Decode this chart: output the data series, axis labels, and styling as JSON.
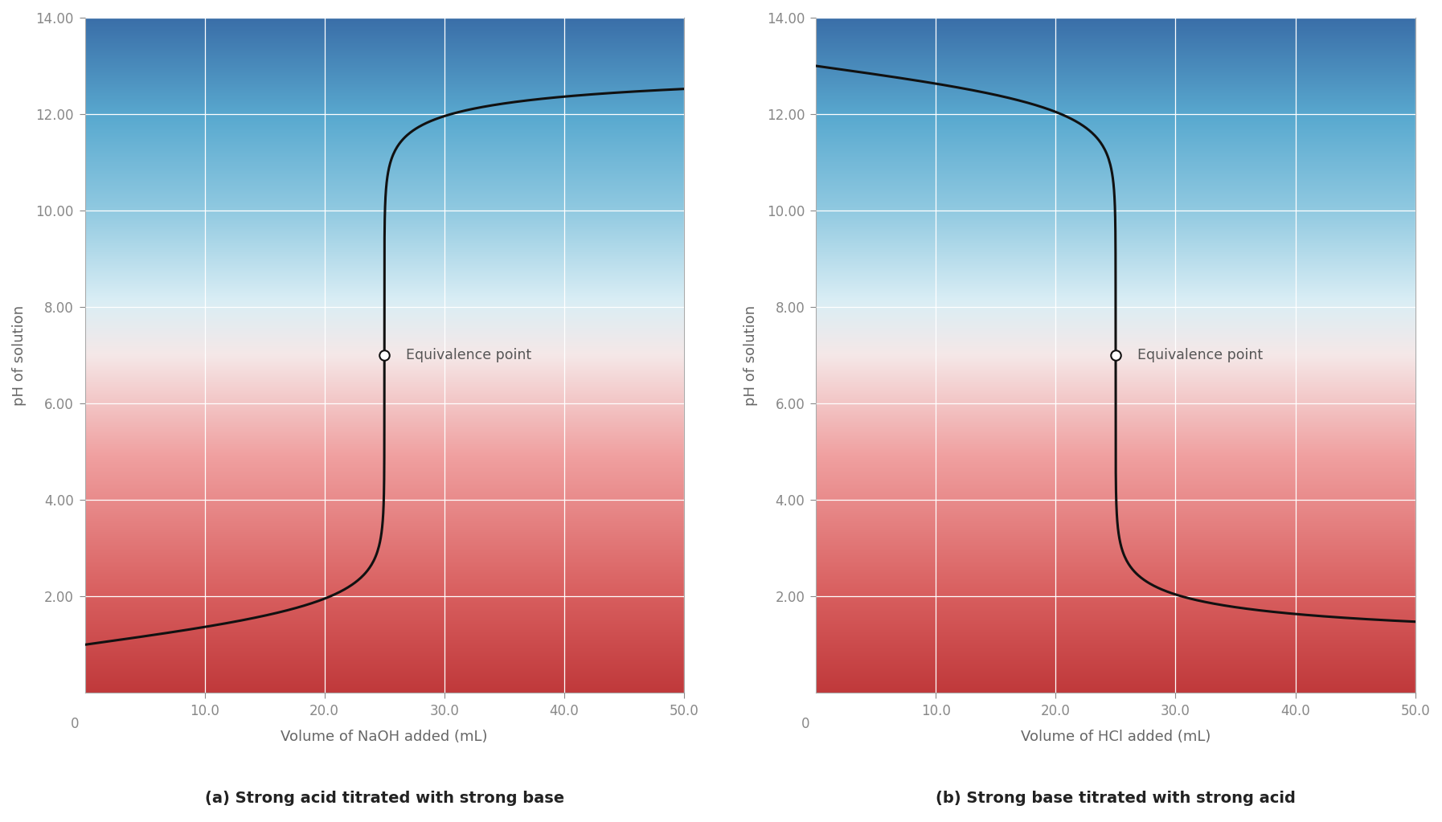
{
  "fig_width": 17.94,
  "fig_height": 10.23,
  "xlim": [
    0,
    50
  ],
  "ylim": [
    0,
    14
  ],
  "xticks": [
    10.0,
    20.0,
    30.0,
    40.0,
    50.0
  ],
  "yticks": [
    2.0,
    4.0,
    6.0,
    8.0,
    10.0,
    12.0,
    14.0
  ],
  "xlabel_a": "Volume of NaOH added (mL)",
  "xlabel_b": "Volume of HCl added (mL)",
  "ylabel": "pH of solution",
  "title_a": "(a) Strong acid titrated with strong base",
  "title_b": "(b) Strong base titrated with strong acid",
  "equiv_label": "Equivalence point",
  "equiv_x_a": 25.0,
  "equiv_y_a": 7.0,
  "equiv_x_b": 25.0,
  "equiv_y_b": 7.0,
  "line_color": "#111111",
  "line_width": 2.2,
  "grid_color": "#ffffff",
  "tick_color": "#888888",
  "label_color": "#666666",
  "title_color": "#222222",
  "grad_colors": [
    [
      0.0,
      "#c0393b"
    ],
    [
      0.15,
      "#d96060"
    ],
    [
      0.35,
      "#f0a0a0"
    ],
    [
      0.5,
      "#f5e8e8"
    ],
    [
      0.58,
      "#daeef5"
    ],
    [
      0.72,
      "#8ec8e0"
    ],
    [
      0.85,
      "#5aaad0"
    ],
    [
      1.0,
      "#3a6ea8"
    ]
  ]
}
